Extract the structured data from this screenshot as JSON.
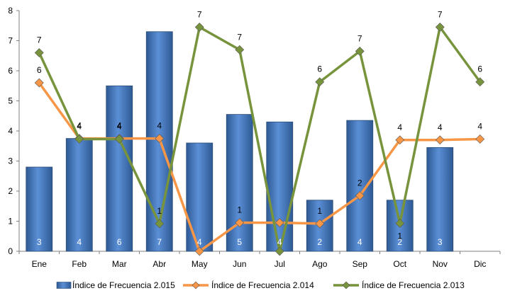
{
  "chart_data": {
    "type": "bar",
    "categories": [
      "Ene",
      "Feb",
      "Mar",
      "Abr",
      "May",
      "Jun",
      "Jul",
      "Ago",
      "Sep",
      "Oct",
      "Nov",
      "Dic"
    ],
    "ylim": [
      0,
      8
    ],
    "yticks": [
      "0",
      "1",
      "2",
      "3",
      "4",
      "5",
      "6",
      "7",
      "8"
    ],
    "grid": false,
    "legend_position": "bottom",
    "series": [
      {
        "name": "Índice de Frecuencia 2.015",
        "type": "bar",
        "color": "#4F81BD",
        "values": [
          2.8,
          3.75,
          5.5,
          7.3,
          3.6,
          4.55,
          4.3,
          1.7,
          4.35,
          1.7,
          3.45,
          null
        ],
        "labels": [
          "3",
          "4",
          "6",
          "7",
          "4",
          "5",
          "4",
          "2",
          "4",
          "2",
          "3",
          ""
        ]
      },
      {
        "name": "Índice de Frecuencia 2.014",
        "type": "line",
        "color": "#F79646",
        "values": [
          5.6,
          3.75,
          3.75,
          3.75,
          0,
          0.95,
          0.95,
          0.92,
          1.85,
          3.7,
          3.7,
          3.73
        ],
        "labels": [
          "6",
          "4",
          "4",
          "4",
          "",
          "1",
          "",
          "1",
          "2",
          "4",
          "4",
          "4"
        ]
      },
      {
        "name": "Índice de Frecuencia 2.013",
        "type": "line",
        "color": "#77933C",
        "values": [
          6.6,
          3.73,
          3.73,
          0.92,
          7.45,
          6.7,
          0,
          5.63,
          6.65,
          0.93,
          7.45,
          5.63
        ],
        "labels": [
          "7",
          "4",
          "4",
          "1",
          "7",
          "7",
          "",
          "6",
          "7",
          "1",
          "7",
          "6"
        ]
      }
    ]
  }
}
